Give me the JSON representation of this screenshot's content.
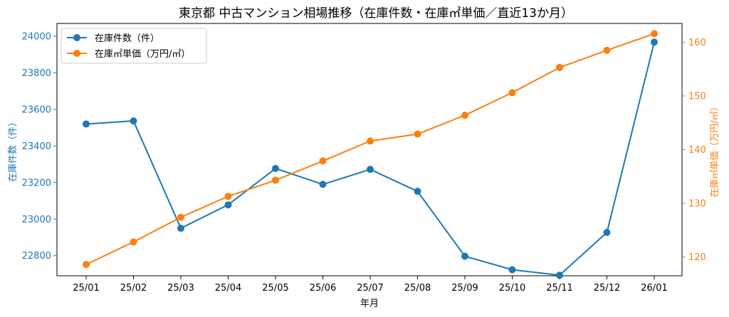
{
  "chart_data": {
    "type": "line",
    "title": "東京都 中古マンション相場推移（在庫件数・在庫㎡単価／直近13か月）",
    "xlabel": "年月",
    "ylabel_left": "在庫件数（件）",
    "ylabel_right": "在庫㎡単価（万円/㎡）",
    "categories": [
      "25/01",
      "25/02",
      "25/03",
      "25/04",
      "25/05",
      "25/06",
      "25/07",
      "25/08",
      "25/09",
      "25/10",
      "25/11",
      "25/12",
      "26/01"
    ],
    "left_axis": {
      "ylim": [
        22690,
        24070
      ],
      "ticks": [
        22800,
        23000,
        23200,
        23400,
        23600,
        23800,
        24000
      ]
    },
    "right_axis": {
      "ylim": [
        116.5,
        163.5
      ],
      "ticks": [
        120,
        130,
        140,
        150,
        160
      ]
    },
    "series": [
      {
        "name": "在庫件数（件）",
        "axis": "left",
        "color": "#1f77b4",
        "values": [
          23520,
          23537,
          22950,
          23078,
          23277,
          23190,
          23272,
          23152,
          22797,
          22723,
          22693,
          22927,
          23968
        ]
      },
      {
        "name": "在庫㎡単価（万円/㎡）",
        "axis": "right",
        "color": "#ff7f0e",
        "values": [
          118.6,
          122.8,
          127.4,
          131.3,
          134.3,
          137.9,
          141.6,
          142.9,
          146.4,
          150.6,
          155.3,
          158.5,
          161.6
        ]
      }
    ],
    "legend": "upper-left",
    "grid": false
  }
}
